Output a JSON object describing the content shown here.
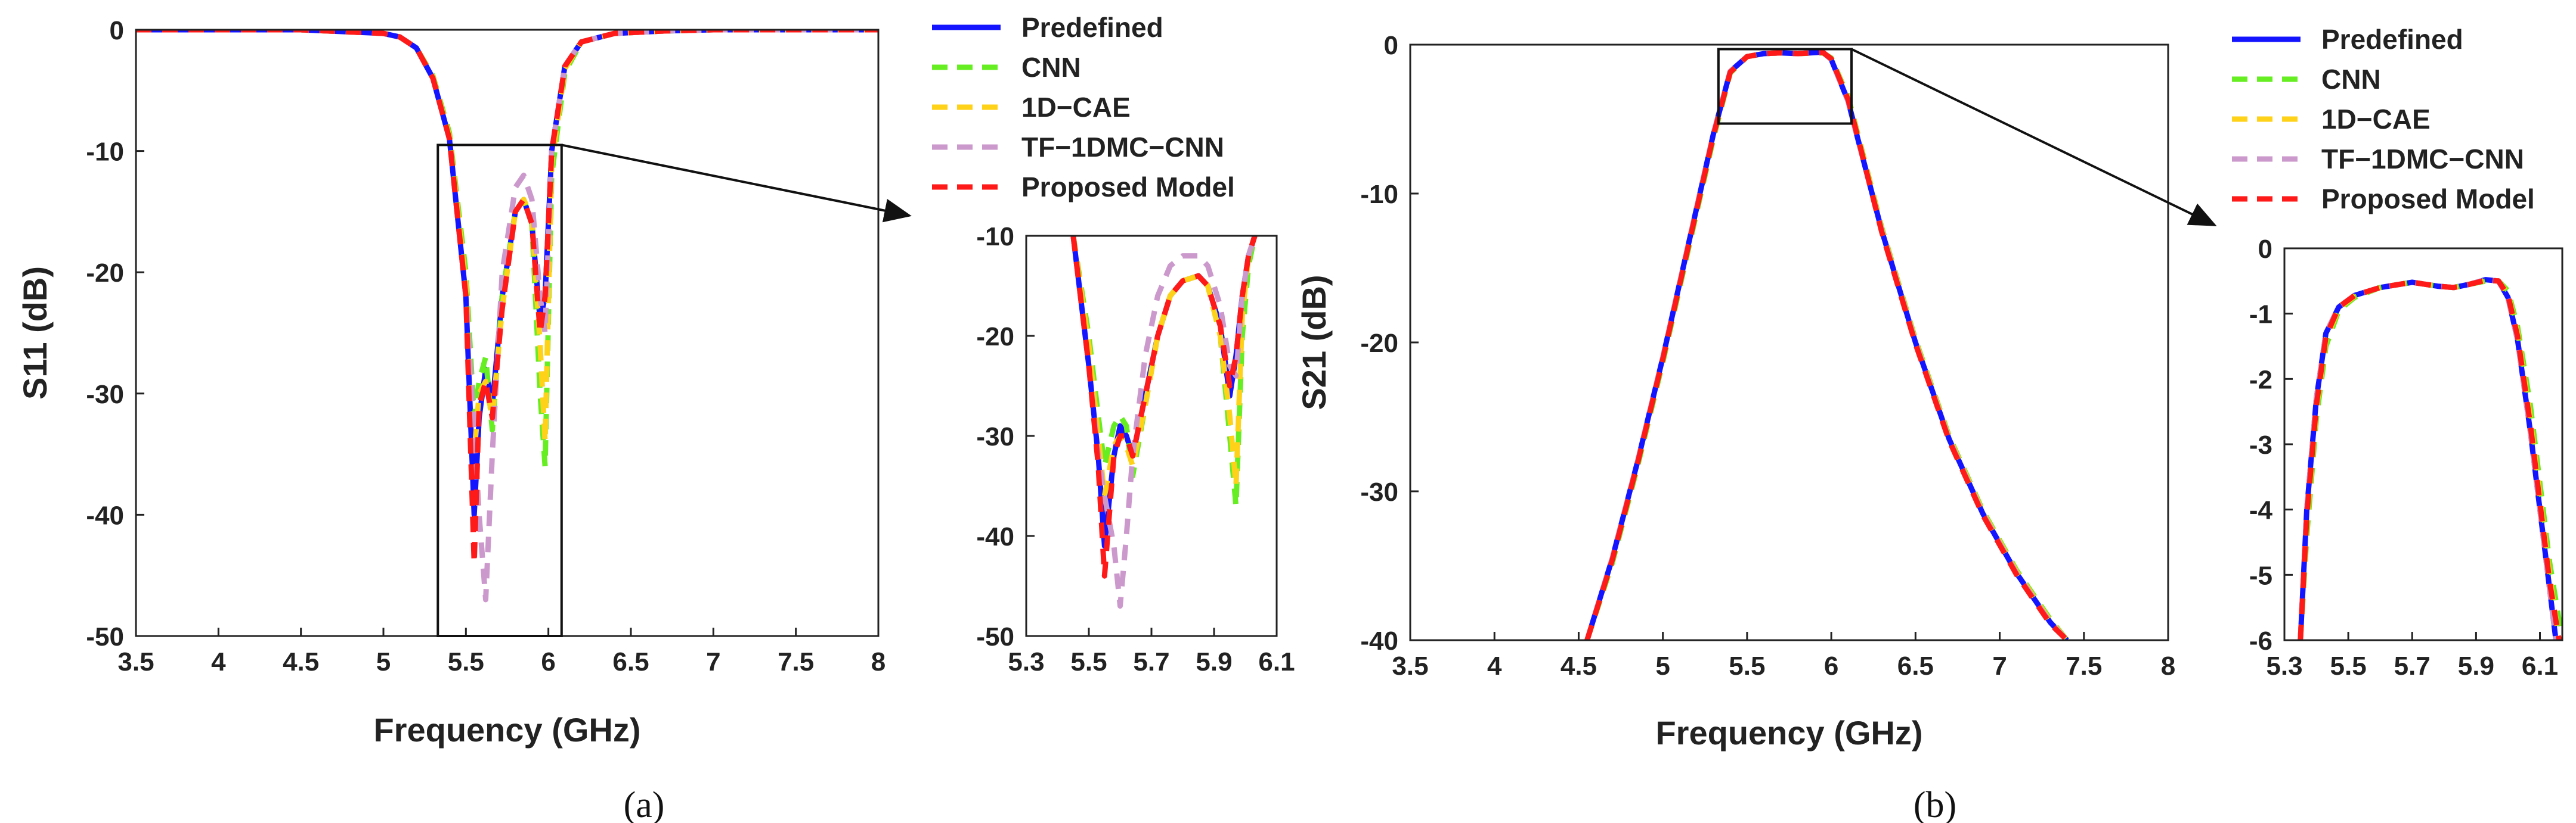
{
  "colors": {
    "predefined": "#1414ff",
    "cnn": "#66ee22",
    "cae": "#ffd21a",
    "tf": "#cc99cc",
    "proposed": "#ff1a1a"
  },
  "legend": [
    "Predefined",
    "CNN",
    "1D−CAE",
    "TF−1DMC−CNN",
    "Proposed Model"
  ],
  "panel_labels": [
    "(a)",
    "(b)"
  ],
  "chart_data": [
    {
      "id": "s11-main",
      "type": "line",
      "title": "",
      "xlabel": "Frequency (GHz)",
      "ylabel": "S11 (dB)",
      "xlim": [
        3.5,
        8
      ],
      "ylim": [
        -50,
        0
      ],
      "xticks": [
        "3.5",
        "4",
        "4.5",
        "5",
        "5.5",
        "6",
        "6.5",
        "7",
        "7.5",
        "8"
      ],
      "yticks": [
        "0",
        "-10",
        "-20",
        "-30",
        "-40",
        "-50"
      ],
      "zoom_box": {
        "x": [
          5.33,
          6.08
        ],
        "y": [
          -50,
          -9.5
        ]
      },
      "series": [
        {
          "name": "Predefined",
          "x": [
            3.5,
            4.5,
            5.0,
            5.1,
            5.2,
            5.3,
            5.4,
            5.5,
            5.55,
            5.58,
            5.62,
            5.66,
            5.72,
            5.8,
            5.85,
            5.9,
            5.95,
            5.98,
            6.02,
            6.1,
            6.2,
            6.4,
            6.7,
            7.0,
            8.0
          ],
          "y": [
            0,
            0,
            -0.3,
            -0.6,
            -1.5,
            -4,
            -9,
            -22,
            -40,
            -32,
            -28,
            -31,
            -22,
            -15,
            -14,
            -16,
            -24,
            -22,
            -10,
            -3,
            -1,
            -0.3,
            -0.1,
            0,
            0
          ]
        },
        {
          "name": "CNN",
          "x": [
            3.5,
            4.5,
            5.0,
            5.1,
            5.2,
            5.3,
            5.4,
            5.5,
            5.55,
            5.58,
            5.62,
            5.66,
            5.72,
            5.8,
            5.85,
            5.9,
            5.95,
            5.98,
            6.02,
            6.1,
            6.2,
            6.4,
            6.7,
            7.0,
            8.0
          ],
          "y": [
            0,
            0,
            -0.3,
            -0.6,
            -1.5,
            -3.8,
            -8.5,
            -20,
            -32,
            -29,
            -27,
            -33,
            -22,
            -15,
            -14,
            -16,
            -30,
            -36,
            -12,
            -3.5,
            -1,
            -0.3,
            -0.1,
            0,
            0
          ]
        },
        {
          "name": "1D−CAE",
          "x": [
            3.5,
            4.5,
            5.0,
            5.1,
            5.2,
            5.3,
            5.4,
            5.5,
            5.55,
            5.58,
            5.62,
            5.66,
            5.72,
            5.8,
            5.85,
            5.9,
            5.95,
            5.98,
            6.02,
            6.1,
            6.2,
            6.4,
            6.7,
            7.0,
            8.0
          ],
          "y": [
            0,
            0,
            -0.3,
            -0.6,
            -1.5,
            -3.9,
            -8.8,
            -21,
            -35,
            -30,
            -29,
            -32,
            -23,
            -15,
            -14,
            -15.5,
            -26,
            -34,
            -11,
            -3.2,
            -1,
            -0.3,
            -0.1,
            0,
            0
          ]
        },
        {
          "name": "TF−1DMC−CNN",
          "x": [
            3.5,
            4.5,
            5.0,
            5.1,
            5.2,
            5.3,
            5.4,
            5.5,
            5.55,
            5.58,
            5.62,
            5.66,
            5.72,
            5.8,
            5.85,
            5.9,
            5.95,
            5.98,
            6.02,
            6.1,
            6.2,
            6.4,
            6.7,
            7.0,
            8.0
          ],
          "y": [
            0,
            0,
            -0.3,
            -0.6,
            -1.5,
            -4,
            -9,
            -22,
            -33,
            -40,
            -47,
            -35,
            -20,
            -13,
            -12,
            -14,
            -22,
            -25,
            -10,
            -3,
            -1,
            -0.3,
            -0.1,
            0,
            0
          ]
        },
        {
          "name": "Proposed Model",
          "x": [
            3.5,
            4.5,
            5.0,
            5.1,
            5.2,
            5.3,
            5.4,
            5.5,
            5.55,
            5.58,
            5.62,
            5.66,
            5.72,
            5.8,
            5.85,
            5.9,
            5.95,
            5.98,
            6.02,
            6.1,
            6.2,
            6.4,
            6.7,
            7.0,
            8.0
          ],
          "y": [
            0,
            0,
            -0.3,
            -0.6,
            -1.5,
            -4,
            -9,
            -22,
            -44,
            -31,
            -29,
            -32,
            -23,
            -15,
            -14,
            -16,
            -25,
            -22,
            -10,
            -3,
            -1,
            -0.3,
            -0.1,
            0,
            0
          ]
        }
      ]
    },
    {
      "id": "s11-zoom",
      "type": "line",
      "title": "",
      "xlabel": "",
      "ylabel": "",
      "xlim": [
        5.3,
        6.1
      ],
      "ylim": [
        -50,
        -10
      ],
      "xticks": [
        "5.3",
        "5.5",
        "5.7",
        "5.9",
        "6.1"
      ],
      "yticks": [
        "-10",
        "-20",
        "-30",
        "-40",
        "-50"
      ],
      "series": [
        {
          "name": "Predefined",
          "x": [
            5.45,
            5.5,
            5.53,
            5.55,
            5.58,
            5.6,
            5.62,
            5.64,
            5.68,
            5.72,
            5.76,
            5.8,
            5.85,
            5.88,
            5.92,
            5.95,
            5.97,
            5.99,
            6.01,
            6.03
          ],
          "y": [
            -10,
            -23,
            -32,
            -41,
            -32,
            -29,
            -30,
            -32,
            -26,
            -20,
            -16,
            -14.5,
            -14,
            -15,
            -19,
            -26,
            -22,
            -16,
            -12,
            -10
          ]
        },
        {
          "name": "CNN",
          "x": [
            5.45,
            5.5,
            5.53,
            5.55,
            5.58,
            5.6,
            5.62,
            5.64,
            5.68,
            5.72,
            5.76,
            5.8,
            5.85,
            5.88,
            5.92,
            5.95,
            5.97,
            5.99,
            6.01,
            6.03
          ],
          "y": [
            -10,
            -20,
            -28,
            -33,
            -29,
            -28,
            -29,
            -34,
            -27,
            -20,
            -16,
            -14.5,
            -14,
            -15,
            -20,
            -30,
            -37,
            -20,
            -13,
            -10
          ]
        },
        {
          "name": "1D−CAE",
          "x": [
            5.45,
            5.5,
            5.53,
            5.55,
            5.58,
            5.6,
            5.62,
            5.64,
            5.68,
            5.72,
            5.76,
            5.8,
            5.85,
            5.88,
            5.92,
            5.95,
            5.97,
            5.99,
            6.01,
            6.03
          ],
          "y": [
            -10,
            -21,
            -30,
            -36,
            -31,
            -30,
            -31,
            -33,
            -27,
            -20,
            -16,
            -14.5,
            -14,
            -15,
            -20,
            -28,
            -35,
            -18,
            -12,
            -10
          ]
        },
        {
          "name": "TF−1DMC−CNN",
          "x": [
            5.45,
            5.5,
            5.53,
            5.55,
            5.58,
            5.6,
            5.62,
            5.64,
            5.68,
            5.72,
            5.76,
            5.8,
            5.85,
            5.88,
            5.92,
            5.95,
            5.97,
            5.99,
            6.01,
            6.03
          ],
          "y": [
            -10,
            -23,
            -32,
            -36,
            -41,
            -47,
            -40,
            -32,
            -22,
            -16,
            -13,
            -12,
            -12,
            -13,
            -17,
            -23,
            -24,
            -16,
            -12,
            -10
          ]
        },
        {
          "name": "Proposed Model",
          "x": [
            5.45,
            5.5,
            5.53,
            5.55,
            5.58,
            5.6,
            5.62,
            5.64,
            5.68,
            5.72,
            5.76,
            5.8,
            5.85,
            5.88,
            5.92,
            5.95,
            5.97,
            5.99,
            6.01,
            6.03
          ],
          "y": [
            -10,
            -23,
            -33,
            -44,
            -32,
            -30,
            -30,
            -32,
            -26,
            -20,
            -16,
            -14.5,
            -14,
            -15,
            -19,
            -25,
            -22,
            -16,
            -12,
            -10
          ]
        }
      ]
    },
    {
      "id": "s21-main",
      "type": "line",
      "title": "",
      "xlabel": "Frequency (GHz)",
      "ylabel": "S21 (dB)",
      "xlim": [
        3.5,
        8
      ],
      "ylim": [
        -40,
        0
      ],
      "xticks": [
        "3.5",
        "4",
        "4.5",
        "5",
        "5.5",
        "6",
        "6.5",
        "7",
        "7.5",
        "8"
      ],
      "yticks": [
        "0",
        "-10",
        "-20",
        "-30",
        "-40"
      ],
      "zoom_box": {
        "x": [
          5.33,
          6.12
        ],
        "y": [
          -5.3,
          -0.3
        ]
      },
      "series": [
        {
          "name": "Predefined",
          "x": [
            4.55,
            4.7,
            4.85,
            5.0,
            5.15,
            5.3,
            5.4,
            5.5,
            5.6,
            5.7,
            5.8,
            5.95,
            6.0,
            6.1,
            6.15,
            6.3,
            6.5,
            6.7,
            6.9,
            7.1,
            7.3,
            7.4
          ],
          "y": [
            -40,
            -34.5,
            -28,
            -21,
            -13.5,
            -6,
            -1.8,
            -0.8,
            -0.6,
            -0.55,
            -0.6,
            -0.5,
            -1,
            -3.8,
            -6,
            -12.5,
            -20,
            -26.5,
            -31.5,
            -35.5,
            -38.8,
            -40
          ]
        },
        {
          "name": "CNN",
          "x": [
            4.55,
            4.7,
            4.85,
            5.0,
            5.15,
            5.3,
            5.4,
            5.5,
            5.6,
            5.7,
            5.8,
            5.95,
            6.0,
            6.1,
            6.15,
            6.3,
            6.5,
            6.7,
            6.9,
            7.1,
            7.3,
            7.4
          ],
          "y": [
            -40,
            -34.8,
            -28.3,
            -21.3,
            -13.8,
            -6.3,
            -1.9,
            -0.8,
            -0.6,
            -0.55,
            -0.6,
            -0.55,
            -0.9,
            -3.5,
            -5.7,
            -12.3,
            -19.8,
            -26.3,
            -31.3,
            -35.3,
            -38.6,
            -40
          ]
        },
        {
          "name": "1D−CAE",
          "x": [
            4.55,
            4.7,
            4.85,
            5.0,
            5.15,
            5.3,
            5.4,
            5.5,
            5.6,
            5.7,
            5.8,
            5.95,
            6.0,
            6.1,
            6.15,
            6.3,
            6.5,
            6.7,
            6.9,
            7.1,
            7.3,
            7.4
          ],
          "y": [
            -40,
            -34.6,
            -28.1,
            -21.1,
            -13.6,
            -6.1,
            -1.85,
            -0.8,
            -0.6,
            -0.55,
            -0.6,
            -0.52,
            -0.95,
            -3.6,
            -5.8,
            -12.4,
            -19.9,
            -26.4,
            -31.4,
            -35.4,
            -38.7,
            -40
          ]
        },
        {
          "name": "TF−1DMC−CNN",
          "x": [
            4.55,
            4.7,
            4.85,
            5.0,
            5.15,
            5.3,
            5.4,
            5.5,
            5.6,
            5.7,
            5.8,
            5.95,
            6.0,
            6.1,
            6.15,
            6.3,
            6.5,
            6.7,
            6.9,
            7.1,
            7.3,
            7.4
          ],
          "y": [
            -40,
            -34.5,
            -28,
            -21,
            -13.5,
            -6,
            -1.8,
            -0.8,
            -0.6,
            -0.55,
            -0.6,
            -0.5,
            -1,
            -3.8,
            -6,
            -12.5,
            -20,
            -26.5,
            -31.5,
            -35.5,
            -38.8,
            -40
          ]
        },
        {
          "name": "Proposed Model",
          "x": [
            4.55,
            4.7,
            4.85,
            5.0,
            5.15,
            5.3,
            5.4,
            5.5,
            5.6,
            5.7,
            5.8,
            5.95,
            6.0,
            6.1,
            6.15,
            6.3,
            6.5,
            6.7,
            6.9,
            7.1,
            7.3,
            7.4
          ],
          "y": [
            -40,
            -34.6,
            -28.1,
            -21.1,
            -13.6,
            -6.1,
            -1.85,
            -0.8,
            -0.6,
            -0.55,
            -0.6,
            -0.52,
            -0.95,
            -3.7,
            -5.9,
            -12.6,
            -20.1,
            -26.6,
            -31.6,
            -35.6,
            -38.9,
            -40
          ]
        }
      ]
    },
    {
      "id": "s21-zoom",
      "type": "line",
      "title": "",
      "xlabel": "",
      "ylabel": "",
      "xlim": [
        5.3,
        6.17
      ],
      "ylim": [
        -6,
        0
      ],
      "xticks": [
        "5.3",
        "5.5",
        "5.7",
        "5.9",
        "6.1"
      ],
      "yticks": [
        "0",
        "-1",
        "-2",
        "-3",
        "-4",
        "-5",
        "-6"
      ],
      "series": [
        {
          "name": "Predefined",
          "x": [
            5.35,
            5.37,
            5.4,
            5.43,
            5.47,
            5.52,
            5.6,
            5.7,
            5.78,
            5.83,
            5.88,
            5.93,
            5.97,
            6.0,
            6.03,
            6.07,
            6.1,
            6.13,
            6.15
          ],
          "y": [
            -6,
            -4,
            -2.3,
            -1.3,
            -0.9,
            -0.72,
            -0.6,
            -0.52,
            -0.58,
            -0.6,
            -0.55,
            -0.48,
            -0.5,
            -0.75,
            -1.4,
            -2.8,
            -4,
            -5.2,
            -6
          ]
        },
        {
          "name": "CNN",
          "x": [
            5.35,
            5.37,
            5.4,
            5.43,
            5.47,
            5.52,
            5.6,
            5.7,
            5.78,
            5.83,
            5.88,
            5.93,
            5.97,
            6.0,
            6.03,
            6.07,
            6.1,
            6.13,
            6.17
          ],
          "y": [
            -6,
            -4.4,
            -2.6,
            -1.5,
            -0.95,
            -0.75,
            -0.6,
            -0.52,
            -0.58,
            -0.6,
            -0.55,
            -0.5,
            -0.5,
            -0.65,
            -1.2,
            -2.4,
            -3.6,
            -4.8,
            -6
          ]
        },
        {
          "name": "1D−CAE",
          "x": [
            5.35,
            5.37,
            5.4,
            5.43,
            5.47,
            5.52,
            5.6,
            5.7,
            5.78,
            5.83,
            5.88,
            5.93,
            5.97,
            6.0,
            6.03,
            6.07,
            6.1,
            6.13,
            6.16
          ],
          "y": [
            -6,
            -4.2,
            -2.45,
            -1.4,
            -0.92,
            -0.73,
            -0.6,
            -0.52,
            -0.58,
            -0.6,
            -0.55,
            -0.49,
            -0.5,
            -0.7,
            -1.3,
            -2.6,
            -3.8,
            -5,
            -6
          ]
        },
        {
          "name": "TF−1DMC−CNN",
          "x": [
            5.35,
            5.37,
            5.4,
            5.43,
            5.47,
            5.52,
            5.6,
            5.7,
            5.78,
            5.83,
            5.88,
            5.93,
            5.97,
            6.0,
            6.03,
            6.07,
            6.1,
            6.13,
            6.15
          ],
          "y": [
            -6,
            -4,
            -2.3,
            -1.3,
            -0.9,
            -0.72,
            -0.6,
            -0.52,
            -0.58,
            -0.6,
            -0.55,
            -0.48,
            -0.5,
            -0.75,
            -1.4,
            -2.8,
            -4,
            -5.2,
            -6
          ]
        },
        {
          "name": "Proposed Model",
          "x": [
            5.35,
            5.37,
            5.4,
            5.43,
            5.47,
            5.52,
            5.6,
            5.7,
            5.78,
            5.83,
            5.88,
            5.93,
            5.97,
            6.0,
            6.03,
            6.07,
            6.1,
            6.13,
            6.16
          ],
          "y": [
            -6,
            -4.1,
            -2.4,
            -1.35,
            -0.9,
            -0.72,
            -0.6,
            -0.52,
            -0.58,
            -0.6,
            -0.55,
            -0.49,
            -0.5,
            -0.72,
            -1.35,
            -2.7,
            -3.9,
            -5.1,
            -6
          ]
        }
      ]
    }
  ]
}
